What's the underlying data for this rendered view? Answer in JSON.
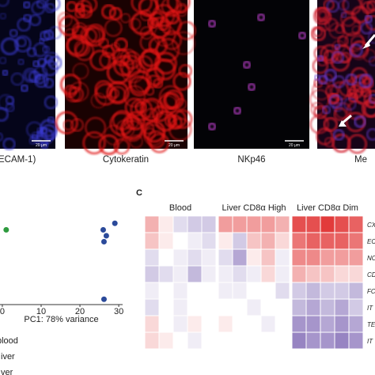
{
  "images": [
    {
      "label": "ECAM-1)",
      "scale": "20 μm"
    },
    {
      "label": "Cytokeratin",
      "scale": "20 μm"
    },
    {
      "label": "NKp46",
      "scale": "20 μm"
    },
    {
      "label": "Me"
    }
  ],
  "pca": {
    "type": "scatter",
    "x_label": "PC1: 78% variance",
    "xlim": [
      -0.6,
      31
    ],
    "xticks": [
      0,
      10,
      20,
      30
    ],
    "ylim": [
      -10.5,
      5.5
    ],
    "points": {
      "x": [
        1,
        29,
        26,
        26.8,
        26.2,
        26.2
      ],
      "y": [
        2.1,
        3.2,
        2.1,
        1.1,
        0.1,
        -9.6
      ],
      "colors": [
        "#2e9a3e",
        "#2b4a9a",
        "#2b4a9a",
        "#2b4a9a",
        "#2b4a9a",
        "#2b4a9a"
      ]
    },
    "legend": [
      "blood",
      "iver",
      "ver"
    ]
  },
  "heatmap": {
    "panel": "C",
    "groups": [
      "Blood",
      "Liver CD8α High",
      "Liver CD8α Dim"
    ],
    "rows": [
      "CX",
      "EO",
      "NC",
      "CD",
      "FC",
      "IT",
      "TE",
      "IT"
    ],
    "colors": {
      "low": "#6a4fa8",
      "mid": "#ffffff",
      "high": "#e23b3b"
    },
    "limits": [
      -1,
      1
    ],
    "values": [
      [
        0.4,
        0.1,
        -0.2,
        -0.3,
        -0.3,
        0.5,
        0.5,
        0.5,
        0.5,
        0.4,
        0.9,
        0.9,
        1,
        0.9,
        0.8
      ],
      [
        0.3,
        0.1,
        0,
        -0.1,
        -0.2,
        0.1,
        -0.3,
        0.3,
        0.4,
        0.2,
        0.7,
        0.8,
        0.8,
        0.8,
        0.7
      ],
      [
        -0.2,
        0,
        -0.1,
        -0.2,
        -0.1,
        -0.2,
        -0.5,
        0.1,
        0.3,
        -0.1,
        0.6,
        0.6,
        0.5,
        0.5,
        0.5
      ],
      [
        -0.3,
        -0.2,
        -0.1,
        -0.4,
        -0.1,
        -0.1,
        -0.2,
        -0.1,
        0.2,
        -0.1,
        0.4,
        0.3,
        0.3,
        0.2,
        0.2
      ],
      [
        -0.1,
        0,
        -0.1,
        0,
        0,
        -0.1,
        -0.1,
        0,
        0,
        -0.2,
        -0.3,
        -0.4,
        -0.3,
        -0.3,
        -0.4
      ],
      [
        -0.2,
        0,
        -0.1,
        0,
        0,
        0,
        0,
        -0.1,
        0,
        0,
        -0.4,
        -0.5,
        -0.4,
        -0.5,
        -0.3
      ],
      [
        0.2,
        0,
        -0.1,
        0.1,
        0,
        0.1,
        0,
        0,
        -0.1,
        0,
        -0.6,
        -0.6,
        -0.5,
        -0.6,
        -0.5
      ],
      [
        0.2,
        0.1,
        0,
        -0.1,
        0,
        0,
        0,
        0,
        0,
        0,
        -0.7,
        -0.6,
        -0.6,
        -0.7,
        -0.6
      ]
    ]
  }
}
